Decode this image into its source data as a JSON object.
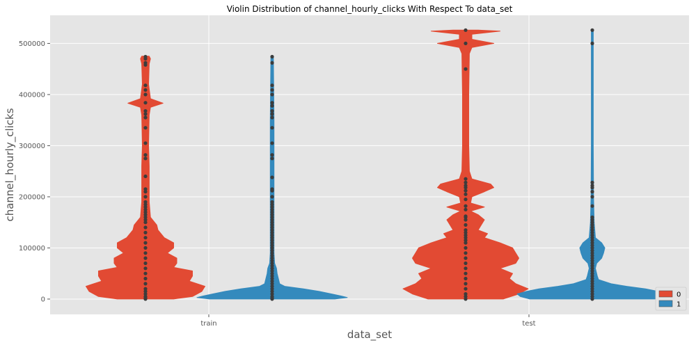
{
  "chart_data": {
    "type": "violin",
    "title": "Violin Distribution of channel_hourly_clicks With Respect To data_set",
    "xlabel": "data_set",
    "ylabel": "channel_hourly_clicks",
    "categories": [
      "train",
      "test"
    ],
    "ylim": [
      -30000,
      555000
    ],
    "yticks": [
      0,
      100000,
      200000,
      300000,
      400000,
      500000
    ],
    "ytick_labels": [
      "0",
      "100000",
      "200000",
      "300000",
      "400000",
      "500000"
    ],
    "grid": true,
    "legend_position": "bottom-right",
    "series": [
      {
        "name": "0",
        "color": "#E24A33",
        "violins": [
          {
            "category": "train",
            "min": 0,
            "max": 475000,
            "outline": [
              [
                0,
                0.45
              ],
              [
                5000,
                0.75
              ],
              [
                15000,
                0.9
              ],
              [
                25000,
                0.95
              ],
              [
                35000,
                0.7
              ],
              [
                45000,
                0.75
              ],
              [
                55000,
                0.75
              ],
              [
                62000,
                0.45
              ],
              [
                70000,
                0.5
              ],
              [
                80000,
                0.5
              ],
              [
                90000,
                0.35
              ],
              [
                100000,
                0.45
              ],
              [
                110000,
                0.45
              ],
              [
                120000,
                0.3
              ],
              [
                135000,
                0.2
              ],
              [
                145000,
                0.18
              ],
              [
                160000,
                0.08
              ],
              [
                190000,
                0.06
              ],
              [
                220000,
                0.06
              ],
              [
                260000,
                0.06
              ],
              [
                300000,
                0.05
              ],
              [
                360000,
                0.06
              ],
              [
                375000,
                0.08
              ],
              [
                383000,
                0.28
              ],
              [
                392000,
                0.08
              ],
              [
                420000,
                0.05
              ],
              [
                460000,
                0.06
              ],
              [
                470000,
                0.08
              ],
              [
                475000,
                0.06
              ]
            ],
            "points": [
              0,
              2000,
              5000,
              10000,
              15000,
              20000,
              30000,
              40000,
              50000,
              60000,
              70000,
              80000,
              90000,
              100000,
              110000,
              120000,
              130000,
              140000,
              150000,
              155000,
              160000,
              165000,
              170000,
              175000,
              180000,
              185000,
              190000,
              200000,
              210000,
              215000,
              240000,
              275000,
              282000,
              305000,
              335000,
              355000,
              362000,
              368000,
              384000,
              400000,
              409000,
              418000,
              458000,
              462000,
              470000,
              474000
            ]
          },
          {
            "category": "test",
            "min": 0,
            "max": 526000,
            "outline": [
              [
                0,
                0.6
              ],
              [
                10000,
                0.85
              ],
              [
                20000,
                1.0
              ],
              [
                30000,
                0.8
              ],
              [
                40000,
                0.7
              ],
              [
                50000,
                0.75
              ],
              [
                60000,
                0.55
              ],
              [
                70000,
                0.8
              ],
              [
                80000,
                0.85
              ],
              [
                90000,
                0.8
              ],
              [
                100000,
                0.75
              ],
              [
                110000,
                0.55
              ],
              [
                120000,
                0.3
              ],
              [
                128000,
                0.35
              ],
              [
                135000,
                0.2
              ],
              [
                145000,
                0.25
              ],
              [
                155000,
                0.3
              ],
              [
                165000,
                0.2
              ],
              [
                172000,
                0.08
              ],
              [
                180000,
                0.3
              ],
              [
                188000,
                0.08
              ],
              [
                200000,
                0.1
              ],
              [
                210000,
                0.3
              ],
              [
                218000,
                0.45
              ],
              [
                225000,
                0.4
              ],
              [
                235000,
                0.1
              ],
              [
                250000,
                0.06
              ],
              [
                300000,
                0.05
              ],
              [
                400000,
                0.05
              ],
              [
                480000,
                0.06
              ],
              [
                492000,
                0.1
              ],
              [
                500000,
                0.45
              ],
              [
                508000,
                0.1
              ],
              [
                518000,
                0.1
              ],
              [
                524000,
                0.55
              ],
              [
                526000,
                0.2
              ]
            ],
            "points": [
              0,
              5000,
              10000,
              20000,
              30000,
              40000,
              50000,
              60000,
              70000,
              80000,
              90000,
              100000,
              110000,
              115000,
              120000,
              125000,
              130000,
              135000,
              145000,
              155000,
              160000,
              162000,
              175000,
              182000,
              195000,
              205000,
              212000,
              218000,
              222000,
              228000,
              235000,
              450000,
              500000,
              526000
            ]
          }
        ]
      },
      {
        "name": "1",
        "color": "#348ABD",
        "violins": [
          {
            "category": "train",
            "min": 0,
            "max": 475000,
            "outline": [
              [
                0,
                1.0
              ],
              [
                3000,
                1.2
              ],
              [
                6000,
                1.1
              ],
              [
                10000,
                0.95
              ],
              [
                15000,
                0.75
              ],
              [
                20000,
                0.5
              ],
              [
                25000,
                0.2
              ],
              [
                30000,
                0.12
              ],
              [
                40000,
                0.1
              ],
              [
                50000,
                0.08
              ],
              [
                60000,
                0.07
              ],
              [
                70000,
                0.04
              ],
              [
                90000,
                0.03
              ],
              [
                150000,
                0.03
              ],
              [
                250000,
                0.03
              ],
              [
                350000,
                0.03
              ],
              [
                475000,
                0.02
              ]
            ],
            "points": [
              0,
              2000,
              5000,
              10000,
              15000,
              20000,
              25000,
              30000,
              35000,
              40000,
              45000,
              50000,
              55000,
              60000,
              65000,
              70000,
              75000,
              80000,
              85000,
              90000,
              95000,
              100000,
              105000,
              110000,
              115000,
              120000,
              125000,
              130000,
              135000,
              140000,
              145000,
              150000,
              155000,
              160000,
              165000,
              170000,
              175000,
              180000,
              185000,
              190000,
              200000,
              212000,
              215000,
              238000,
              275000,
              282000,
              305000,
              335000,
              355000,
              362000,
              368000,
              378000,
              384000,
              400000,
              409000,
              418000,
              462000,
              474000
            ]
          },
          {
            "category": "test",
            "min": 0,
            "max": 526000,
            "outline": [
              [
                0,
                1.0
              ],
              [
                5000,
                1.15
              ],
              [
                10000,
                1.2
              ],
              [
                15000,
                1.05
              ],
              [
                20000,
                0.85
              ],
              [
                25000,
                0.55
              ],
              [
                30000,
                0.3
              ],
              [
                38000,
                0.1
              ],
              [
                45000,
                0.08
              ],
              [
                60000,
                0.05
              ],
              [
                70000,
                0.07
              ],
              [
                80000,
                0.15
              ],
              [
                90000,
                0.18
              ],
              [
                100000,
                0.2
              ],
              [
                110000,
                0.15
              ],
              [
                120000,
                0.05
              ],
              [
                135000,
                0.04
              ],
              [
                150000,
                0.03
              ],
              [
                200000,
                0.02
              ],
              [
                300000,
                0.015
              ],
              [
                526000,
                0.015
              ]
            ],
            "points": [
              0,
              5000,
              10000,
              15000,
              20000,
              25000,
              30000,
              35000,
              40000,
              45000,
              50000,
              55000,
              60000,
              65000,
              70000,
              75000,
              80000,
              85000,
              90000,
              95000,
              100000,
              105000,
              110000,
              115000,
              120000,
              125000,
              130000,
              135000,
              140000,
              145000,
              150000,
              155000,
              160000,
              182000,
              200000,
              210000,
              218000,
              222000,
              228000,
              500000,
              526000
            ]
          }
        ]
      }
    ],
    "colors": {
      "background": "#E5E5E5",
      "grid": "#FFFFFF",
      "points": "#3C3C3C"
    }
  }
}
